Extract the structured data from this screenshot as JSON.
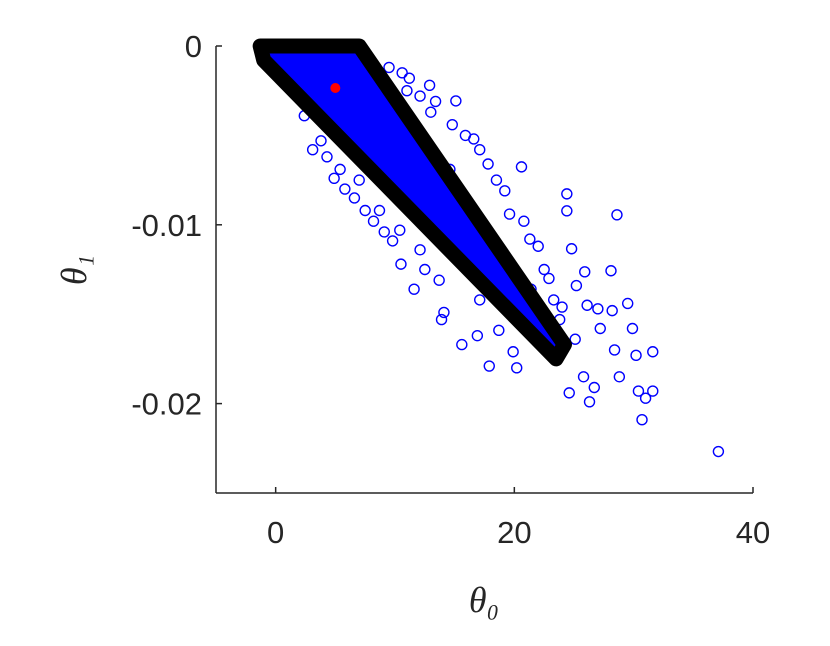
{
  "chart_data": {
    "type": "scatter",
    "x_label": "θ₀",
    "y_label": "θ₁",
    "xlim": [
      -5,
      40
    ],
    "ylim": [
      -0.025,
      0
    ],
    "xticks": [
      0,
      20,
      40
    ],
    "yticks": [
      -0.02,
      -0.01,
      0
    ],
    "series": [
      {
        "color": "#0000ff",
        "x": [
          37.1,
          30.7,
          28.6,
          24.8,
          24.4,
          24.4,
          20.6,
          15.1,
          25.9,
          28.1,
          28.2,
          29.5,
          29.9,
          31.6,
          31.6,
          31.0,
          30.4,
          30.2,
          28.4,
          28.8,
          26.3,
          26.7,
          24.6,
          25.8,
          27.0,
          27.2,
          26.1,
          25.2,
          20.2,
          17.9,
          15.6,
          13.9,
          10.5,
          9.1,
          7.5,
          5.8,
          4.3,
          10.6,
          12.9,
          12.1,
          15.9,
          17.1,
          18.5,
          19.6,
          21.3,
          22.5,
          23.8,
          25.1,
          23.3,
          18.7,
          17.1,
          13.7,
          12.1,
          10.4,
          8.7,
          7.0,
          5.4,
          3.8,
          2.4,
          13.7,
          16.2,
          14.6,
          18.9,
          21.4,
          15.4,
          11.2,
          13.4,
          14.8,
          16.6,
          17.8,
          19.2,
          20.8,
          22.0,
          22.9,
          12.5,
          9.8,
          6.6,
          4.9,
          3.1,
          8.2,
          11.6,
          14.1,
          16.9,
          19.9,
          21.7,
          23.1,
          24.0,
          9.5,
          11.0,
          13.0
        ],
        "y": [
          -0.02268,
          -0.0209,
          -0.00944,
          -0.01134,
          -0.00827,
          -0.00922,
          -0.00676,
          -0.00307,
          -0.01263,
          -0.01257,
          -0.0148,
          -0.0144,
          -0.0158,
          -0.0171,
          -0.0193,
          -0.0197,
          -0.0193,
          -0.0173,
          -0.017,
          -0.0185,
          -0.0199,
          -0.0191,
          -0.0194,
          -0.0185,
          -0.0147,
          -0.0158,
          -0.0145,
          -0.0134,
          -0.018,
          -0.0179,
          -0.0167,
          -0.0153,
          -0.0122,
          -0.0104,
          -0.0092,
          -0.008,
          -0.0062,
          -0.0015,
          -0.0022,
          -0.0028,
          -0.005,
          -0.0058,
          -0.0075,
          -0.0094,
          -0.0108,
          -0.0125,
          -0.0153,
          -0.0164,
          -0.0142,
          -0.0159,
          -0.0142,
          -0.0131,
          -0.0114,
          -0.0103,
          -0.0092,
          -0.0075,
          -0.0069,
          -0.0053,
          -0.0039,
          -0.0086,
          -0.0097,
          -0.0069,
          -0.012,
          -0.0136,
          -0.0114,
          -0.0018,
          -0.0031,
          -0.0044,
          -0.0052,
          -0.0066,
          -0.0081,
          -0.0098,
          -0.0112,
          -0.013,
          -0.0125,
          -0.0109,
          -0.0085,
          -0.0074,
          -0.0058,
          -0.0098,
          -0.0136,
          -0.0149,
          -0.0162,
          -0.0171,
          -0.0152,
          -0.0165,
          -0.0146,
          -0.0012,
          -0.0025,
          -0.0037
        ]
      }
    ],
    "polygon": {
      "x": [
        -1.3,
        7.0,
        24.2,
        23.5,
        -1.0
      ],
      "y": [
        0,
        0,
        -0.0167,
        -0.0175,
        -0.0008
      ],
      "fill": "#0000ff",
      "edge": "#000000"
    },
    "point": {
      "x": 5.0,
      "y": -0.00235,
      "color": "#ff0000"
    }
  }
}
